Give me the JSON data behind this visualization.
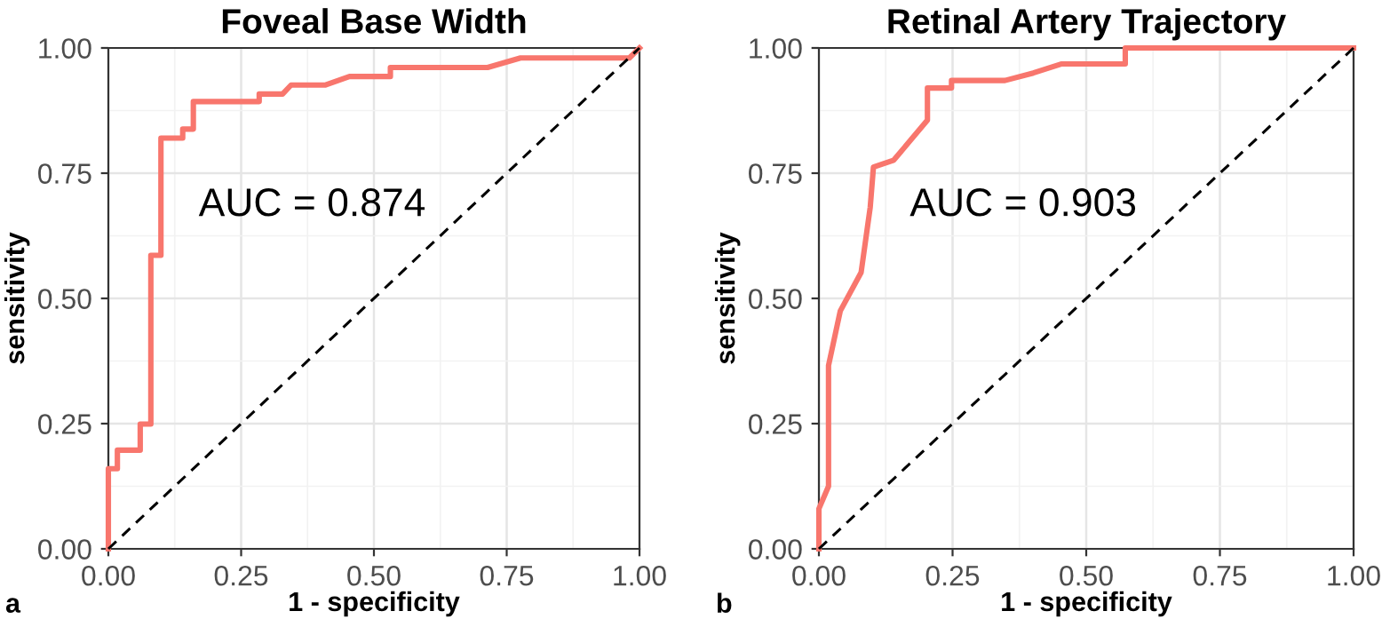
{
  "chart_data": [
    {
      "type": "line",
      "title": "Foveal Base Width",
      "xlabel": "1 - specificity",
      "ylabel": "sensitivity",
      "xlim": [
        0,
        1
      ],
      "ylim": [
        0,
        1
      ],
      "xticks": [
        {
          "value": 0,
          "label": "0.00"
        },
        {
          "value": 0.25,
          "label": "0.25"
        },
        {
          "value": 0.5,
          "label": "0.50"
        },
        {
          "value": 0.75,
          "label": "0.75"
        },
        {
          "value": 1,
          "label": "1.00"
        }
      ],
      "yticks": [
        {
          "value": 0,
          "label": "0.00"
        },
        {
          "value": 0.25,
          "label": "0.25"
        },
        {
          "value": 0.5,
          "label": "0.50"
        },
        {
          "value": 0.75,
          "label": "0.75"
        },
        {
          "value": 1,
          "label": "1.00"
        }
      ],
      "grid": true,
      "legend": false,
      "series": [
        {
          "color": "#f8766d",
          "x": [
            0,
            0,
            0.017,
            0.017,
            0.06,
            0.06,
            0.08,
            0.08,
            0.099,
            0.099,
            0.14,
            0.14,
            0.16,
            0.16,
            0.284,
            0.284,
            0.328,
            0.344,
            0.409,
            0.454,
            0.531,
            0.531,
            0.714,
            0.776,
            0.981,
            1
          ],
          "values": [
            0,
            0.16,
            0.16,
            0.197,
            0.197,
            0.249,
            0.249,
            0.586,
            0.586,
            0.82,
            0.82,
            0.838,
            0.838,
            0.893,
            0.893,
            0.908,
            0.908,
            0.926,
            0.926,
            0.943,
            0.943,
            0.961,
            0.961,
            0.98,
            0.98,
            1
          ]
        },
        {
          "type": "line",
          "color": "#000000",
          "line_style": "dashed",
          "x": [
            0,
            1
          ],
          "values": [
            0,
            1
          ]
        }
      ],
      "annotations": [
        "AUC = 0.874",
        "a"
      ]
    },
    {
      "type": "line",
      "title": "Retinal Artery Trajectory",
      "xlabel": "1 - specificity",
      "ylabel": "sensitivity",
      "xlim": [
        0,
        1
      ],
      "ylim": [
        0,
        1
      ],
      "xticks": [
        {
          "value": 0,
          "label": "0.00"
        },
        {
          "value": 0.25,
          "label": "0.25"
        },
        {
          "value": 0.5,
          "label": "0.50"
        },
        {
          "value": 0.75,
          "label": "0.75"
        },
        {
          "value": 1,
          "label": "1.00"
        }
      ],
      "yticks": [
        {
          "value": 0,
          "label": "0.00"
        },
        {
          "value": 0.25,
          "label": "0.25"
        },
        {
          "value": 0.5,
          "label": "0.50"
        },
        {
          "value": 0.75,
          "label": "0.75"
        },
        {
          "value": 1,
          "label": "1.00"
        }
      ],
      "grid": true,
      "legend": false,
      "series": [
        {
          "color": "#f8766d",
          "x": [
            0,
            0,
            0.018,
            0.018,
            0.04,
            0.079,
            0.096,
            0.102,
            0.14,
            0.203,
            0.203,
            0.248,
            0.248,
            0.348,
            0.401,
            0.453,
            0.573,
            0.573,
            1
          ],
          "values": [
            0,
            0.08,
            0.125,
            0.366,
            0.475,
            0.552,
            0.682,
            0.762,
            0.776,
            0.856,
            0.92,
            0.92,
            0.935,
            0.935,
            0.95,
            0.968,
            0.968,
            1,
            1
          ]
        },
        {
          "type": "line",
          "color": "#000000",
          "line_style": "dashed",
          "x": [
            0,
            1
          ],
          "values": [
            0,
            1
          ]
        }
      ],
      "annotations": [
        "AUC = 0.903",
        "b"
      ]
    }
  ]
}
